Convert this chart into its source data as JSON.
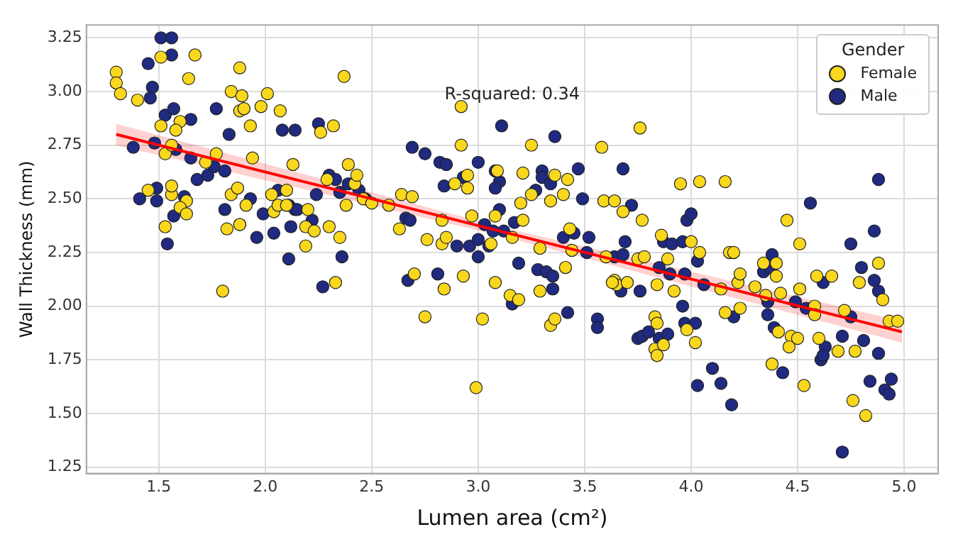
{
  "chart_data": {
    "type": "scatter",
    "xlabel": "Lumen area (cm²)",
    "ylabel": "Wall Thickness (mm)",
    "legend_title": "Gender",
    "annotations": [
      "R-squared: 0.34"
    ],
    "xlim": [
      1.16,
      5.16
    ],
    "ylim": [
      1.22,
      3.31
    ],
    "xticks": [
      {
        "value": 1.5,
        "label": "1.5"
      },
      {
        "value": 2,
        "label": "2.0"
      },
      {
        "value": 2.5,
        "label": "2.5"
      },
      {
        "value": 3,
        "label": "3.0"
      },
      {
        "value": 3.5,
        "label": "3.5"
      },
      {
        "value": 4,
        "label": "4.0"
      },
      {
        "value": 4.5,
        "label": "4.5"
      },
      {
        "value": 5,
        "label": "5.0"
      }
    ],
    "yticks": [
      {
        "value": 1.25,
        "label": "1.25"
      },
      {
        "value": 1.5,
        "label": "1.50"
      },
      {
        "value": 1.75,
        "label": "1.75"
      },
      {
        "value": 2,
        "label": "2.00"
      },
      {
        "value": 2.25,
        "label": "2.25"
      },
      {
        "value": 2.5,
        "label": "2.50"
      },
      {
        "value": 2.75,
        "label": "2.75"
      },
      {
        "value": 3,
        "label": "3.00"
      },
      {
        "value": 3.25,
        "label": "3.25"
      }
    ],
    "grid": true,
    "legend": "top right",
    "series": [
      {
        "name": "Female",
        "color": "#f9d71c",
        "marker": "circle",
        "x": [
          1.3,
          1.3,
          1.32,
          1.4,
          1.51,
          1.67,
          1.64,
          1.88,
          1.84,
          1.89,
          1.88,
          1.9,
          1.98,
          2.01,
          2.07,
          1.93,
          1.51,
          1.6,
          1.58,
          1.53,
          1.56,
          1.77,
          1.72,
          1.94,
          2.13,
          2.26,
          2.32,
          2.39,
          2.37,
          1.45,
          1.56,
          1.56,
          1.63,
          1.6,
          1.63,
          1.53,
          1.84,
          1.87,
          1.91,
          1.82,
          1.88,
          2.03,
          2.04,
          2.06,
          2.1,
          2.1,
          2.2,
          2.19,
          2.23,
          2.19,
          2.3,
          2.35,
          2.33,
          1.8,
          2.29,
          2.38,
          2.42,
          2.43,
          2.92,
          2.92,
          3.25,
          3.58,
          2.46,
          2.5,
          2.58,
          2.64,
          2.69,
          2.63,
          2.76,
          2.83,
          2.83,
          2.85,
          2.89,
          2.95,
          2.95,
          2.97,
          3.06,
          3.08,
          3.09,
          3.16,
          3.21,
          3.21,
          3.2,
          3.25,
          3.34,
          3.36,
          3.42,
          3.4,
          3.29,
          3.43,
          3.44,
          3.41,
          3.59,
          3.6,
          3.64,
          3.65,
          2.7,
          2.84,
          2.93,
          3.08,
          3.15,
          3.19,
          3.29,
          2.75,
          3.02,
          3.34,
          3.36,
          2.99,
          3.76,
          3.95,
          4.04,
          4.16,
          3.64,
          3.68,
          3.77,
          3.86,
          4.0,
          4.04,
          4.18,
          4.2,
          4.45,
          4.51,
          3.75,
          3.78,
          3.89,
          3.7,
          3.63,
          3.84,
          3.92,
          4.14,
          4.22,
          4.23,
          4.3,
          4.34,
          4.4,
          4.4,
          4.42,
          4.51,
          4.59,
          4.66,
          4.79,
          4.88,
          4.9,
          4.93,
          4.97,
          3.83,
          3.84,
          3.83,
          3.84,
          3.87,
          3.98,
          4.02,
          4.16,
          4.23,
          4.35,
          4.41,
          4.47,
          4.5,
          4.46,
          4.58,
          4.58,
          4.6,
          4.72,
          4.69,
          4.77,
          4.38,
          4.53,
          4.76,
          4.82
        ],
        "values": [
          3.09,
          3.04,
          2.99,
          2.96,
          3.16,
          3.17,
          3.06,
          3.11,
          3.0,
          2.98,
          2.91,
          2.92,
          2.93,
          2.99,
          2.91,
          2.84,
          2.84,
          2.86,
          2.82,
          2.71,
          2.75,
          2.71,
          2.67,
          2.69,
          2.66,
          2.81,
          2.84,
          2.66,
          3.07,
          2.54,
          2.52,
          2.56,
          2.49,
          2.46,
          2.43,
          2.37,
          2.52,
          2.55,
          2.47,
          2.36,
          2.38,
          2.52,
          2.44,
          2.47,
          2.54,
          2.47,
          2.45,
          2.37,
          2.35,
          2.28,
          2.37,
          2.32,
          2.11,
          2.07,
          2.59,
          2.47,
          2.57,
          2.61,
          2.93,
          2.75,
          2.75,
          2.74,
          2.5,
          2.48,
          2.47,
          2.52,
          2.51,
          2.36,
          2.31,
          2.4,
          2.29,
          2.32,
          2.57,
          2.61,
          2.55,
          2.42,
          2.29,
          2.42,
          2.63,
          2.32,
          2.4,
          2.62,
          2.48,
          2.52,
          2.49,
          2.61,
          2.59,
          2.52,
          2.27,
          2.36,
          2.26,
          2.18,
          2.49,
          2.23,
          2.12,
          2.1,
          2.15,
          2.08,
          2.14,
          2.11,
          2.05,
          2.03,
          2.07,
          1.95,
          1.94,
          1.91,
          1.94,
          1.62,
          2.83,
          2.57,
          2.58,
          2.58,
          2.49,
          2.44,
          2.4,
          2.33,
          2.3,
          2.25,
          2.25,
          2.25,
          2.4,
          2.29,
          2.22,
          2.23,
          2.22,
          2.11,
          2.11,
          2.1,
          2.07,
          2.08,
          2.11,
          2.15,
          2.09,
          2.2,
          2.2,
          2.14,
          2.06,
          2.08,
          2.14,
          2.14,
          2.11,
          2.2,
          2.03,
          1.93,
          1.93,
          1.95,
          1.92,
          1.8,
          1.77,
          1.82,
          1.89,
          1.83,
          1.97,
          1.99,
          2.05,
          1.88,
          1.86,
          1.85,
          1.81,
          2.0,
          1.96,
          1.85,
          1.98,
          1.79,
          1.79,
          1.73,
          1.63,
          1.56,
          1.49
        ]
      },
      {
        "name": "Male",
        "color": "#1f2a80",
        "marker": "circle",
        "x": [
          1.51,
          1.56,
          1.56,
          1.45,
          1.47,
          1.46,
          1.53,
          1.57,
          1.65,
          1.77,
          1.83,
          2.08,
          2.14,
          2.25,
          1.38,
          1.48,
          1.58,
          1.65,
          1.68,
          1.73,
          1.76,
          1.81,
          1.49,
          1.41,
          1.49,
          1.62,
          1.57,
          1.54,
          1.81,
          1.88,
          1.93,
          1.96,
          1.99,
          2.04,
          2.06,
          2.11,
          2.12,
          2.11,
          2.14,
          2.15,
          2.22,
          2.24,
          2.27,
          2.36,
          2.3,
          2.33,
          2.35,
          2.39,
          2.44,
          2.47,
          3.11,
          3.36,
          2.69,
          2.75,
          2.82,
          2.85,
          3.0,
          3.08,
          3.1,
          2.93,
          2.84,
          3.08,
          3.3,
          3.3,
          3.34,
          3.27,
          3.47,
          3.49,
          2.66,
          2.68,
          3.1,
          3.03,
          3.07,
          3.12,
          3.17,
          2.9,
          2.96,
          3.0,
          3.05,
          3.0,
          3.4,
          3.45,
          3.52,
          3.51,
          3.64,
          2.67,
          2.81,
          3.19,
          3.28,
          3.32,
          3.35,
          3.35,
          3.16,
          3.42,
          3.56,
          3.56,
          3.68,
          3.72,
          3.69,
          3.68,
          3.67,
          3.87,
          3.91,
          3.85,
          3.9,
          3.76,
          3.96,
          3.98,
          4.0,
          4.03,
          3.97,
          4.06,
          3.96,
          3.97,
          4.02,
          4.2,
          3.75,
          3.77,
          3.8,
          3.85,
          3.89,
          4.1,
          4.14,
          4.03,
          4.19,
          4.34,
          4.38,
          4.37,
          4.36,
          4.36,
          4.39,
          4.49,
          4.54,
          4.56,
          4.43,
          4.63,
          4.61,
          4.62,
          4.62,
          4.71,
          4.75,
          4.8,
          4.86,
          4.86,
          4.88,
          4.75,
          4.81,
          4.88,
          4.88,
          4.84,
          4.94,
          4.91,
          4.93,
          4.71
        ],
        "values": [
          3.25,
          3.25,
          3.17,
          3.13,
          3.02,
          2.97,
          2.89,
          2.92,
          2.87,
          2.92,
          2.8,
          2.82,
          2.82,
          2.85,
          2.74,
          2.76,
          2.73,
          2.69,
          2.59,
          2.61,
          2.65,
          2.63,
          2.55,
          2.5,
          2.49,
          2.51,
          2.42,
          2.29,
          2.45,
          2.38,
          2.5,
          2.32,
          2.43,
          2.34,
          2.54,
          2.47,
          2.37,
          2.22,
          2.45,
          2.45,
          2.4,
          2.52,
          2.09,
          2.23,
          2.61,
          2.59,
          2.53,
          2.57,
          2.54,
          2.5,
          2.84,
          2.79,
          2.74,
          2.71,
          2.67,
          2.66,
          2.67,
          2.63,
          2.58,
          2.6,
          2.56,
          2.55,
          2.63,
          2.6,
          2.57,
          2.54,
          2.64,
          2.5,
          2.41,
          2.4,
          2.45,
          2.38,
          2.35,
          2.35,
          2.39,
          2.28,
          2.28,
          2.31,
          2.28,
          2.23,
          2.32,
          2.34,
          2.32,
          2.25,
          2.23,
          2.12,
          2.15,
          2.2,
          2.17,
          2.16,
          2.14,
          2.08,
          2.01,
          1.97,
          1.94,
          1.9,
          2.64,
          2.47,
          2.3,
          2.24,
          2.07,
          2.3,
          2.29,
          2.18,
          2.15,
          2.07,
          2.3,
          2.4,
          2.43,
          2.21,
          2.15,
          2.1,
          2.0,
          1.92,
          1.92,
          1.95,
          1.85,
          1.86,
          1.88,
          1.85,
          1.87,
          1.71,
          1.64,
          1.63,
          1.54,
          2.16,
          2.24,
          2.18,
          2.02,
          1.96,
          1.9,
          2.02,
          1.99,
          2.48,
          1.69,
          1.81,
          1.75,
          2.11,
          1.77,
          1.86,
          2.29,
          2.18,
          2.35,
          2.12,
          2.07,
          1.95,
          1.84,
          1.78,
          2.59,
          1.65,
          1.66,
          1.61,
          1.59,
          1.32
        ]
      },
      {
        "type": "line",
        "color": "#ff0000",
        "marker": "none",
        "x": [
          1.3,
          3.1,
          4.99
        ],
        "values": [
          2.8,
          2.35,
          1.88
        ],
        "lower": [
          2.75,
          2.33,
          1.83
        ],
        "upper": [
          2.85,
          2.37,
          1.93
        ]
      }
    ]
  }
}
